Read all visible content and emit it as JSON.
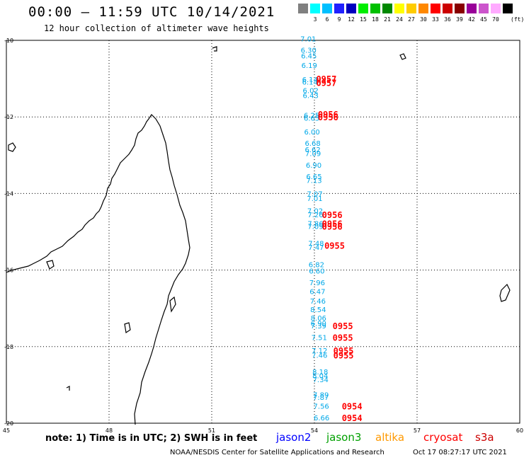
{
  "header": {
    "title": "00:00 – 11:59 UTC 10/14/2021",
    "subtitle": "12 hour collection of altimeter wave heights"
  },
  "color_scale": {
    "unit": "(ft)",
    "swatches": [
      {
        "color": "#808080",
        "label": ""
      },
      {
        "color": "#00ffff",
        "label": "3"
      },
      {
        "color": "#00c0ff",
        "label": "6"
      },
      {
        "color": "#2020ff",
        "label": "9"
      },
      {
        "color": "#0000c0",
        "label": "12"
      },
      {
        "color": "#00ee00",
        "label": "15"
      },
      {
        "color": "#00c000",
        "label": "18"
      },
      {
        "color": "#008800",
        "label": "21"
      },
      {
        "color": "#ffff00",
        "label": "24"
      },
      {
        "color": "#ffcc00",
        "label": "27"
      },
      {
        "color": "#ff8800",
        "label": "30"
      },
      {
        "color": "#ff0000",
        "label": "33"
      },
      {
        "color": "#cc0000",
        "label": "36"
      },
      {
        "color": "#880000",
        "label": "39"
      },
      {
        "color": "#990099",
        "label": "42"
      },
      {
        "color": "#cc55cc",
        "label": "45"
      },
      {
        "color": "#ffaaff",
        "label": "70"
      },
      {
        "color": "#000000",
        "label": ""
      }
    ]
  },
  "axes": {
    "lon_ticks": [
      {
        "lon": 45,
        "label": "45"
      },
      {
        "lon": 48,
        "label": "48"
      },
      {
        "lon": 51,
        "label": "51"
      },
      {
        "lon": 54,
        "label": "54"
      },
      {
        "lon": 57,
        "label": "57"
      },
      {
        "lon": 60,
        "label": "60"
      }
    ],
    "lat_ticks": [
      {
        "lat": -10,
        "label": "-10"
      },
      {
        "lat": -12,
        "label": "-12"
      },
      {
        "lat": -14,
        "label": "-14"
      },
      {
        "lat": -16,
        "label": "-16"
      },
      {
        "lat": -18,
        "label": "-18"
      },
      {
        "lat": -20,
        "label": "-20"
      }
    ]
  },
  "swh_observations": [
    {
      "lon": 53.82,
      "lat": -9.95,
      "value": "7.01"
    },
    {
      "lon": 53.83,
      "lat": -10.25,
      "value": "6.30"
    },
    {
      "lon": 53.84,
      "lat": -10.4,
      "value": "6.45"
    },
    {
      "lon": 53.85,
      "lat": -10.65,
      "value": "6.19"
    },
    {
      "lon": 53.87,
      "lat": -11.02,
      "value": "6.14"
    },
    {
      "lon": 53.87,
      "lat": -11.08,
      "value": "6.14"
    },
    {
      "lon": 53.89,
      "lat": -11.3,
      "value": "6.02"
    },
    {
      "lon": 53.89,
      "lat": -11.43,
      "value": "6.43"
    },
    {
      "lon": 53.92,
      "lat": -11.95,
      "value": "6.25"
    },
    {
      "lon": 53.92,
      "lat": -12.02,
      "value": "6.65"
    },
    {
      "lon": 53.93,
      "lat": -12.38,
      "value": "6.00"
    },
    {
      "lon": 53.95,
      "lat": -12.68,
      "value": "6.68"
    },
    {
      "lon": 53.95,
      "lat": -12.85,
      "value": "6.62"
    },
    {
      "lon": 53.96,
      "lat": -12.95,
      "value": "7.09"
    },
    {
      "lon": 53.98,
      "lat": -13.25,
      "value": "6.90"
    },
    {
      "lon": 53.99,
      "lat": -13.55,
      "value": "6.65"
    },
    {
      "lon": 53.99,
      "lat": -13.65,
      "value": "7.13"
    },
    {
      "lon": 54.01,
      "lat": -14.0,
      "value": "7.07"
    },
    {
      "lon": 54.01,
      "lat": -14.12,
      "value": "7.01"
    },
    {
      "lon": 54.02,
      "lat": -14.45,
      "value": "7.02"
    },
    {
      "lon": 54.03,
      "lat": -14.55,
      "value": "7.26"
    },
    {
      "lon": 54.03,
      "lat": -14.78,
      "value": "7.86"
    },
    {
      "lon": 54.03,
      "lat": -14.85,
      "value": "7.09"
    },
    {
      "lon": 54.05,
      "lat": -15.3,
      "value": "7.48"
    },
    {
      "lon": 54.05,
      "lat": -15.4,
      "value": "7.47"
    },
    {
      "lon": 54.06,
      "lat": -15.85,
      "value": "6.82"
    },
    {
      "lon": 54.07,
      "lat": -16.02,
      "value": "6.60"
    },
    {
      "lon": 54.08,
      "lat": -16.32,
      "value": "7.96"
    },
    {
      "lon": 54.09,
      "lat": -16.55,
      "value": "6.47"
    },
    {
      "lon": 54.1,
      "lat": -16.8,
      "value": "7.46"
    },
    {
      "lon": 54.11,
      "lat": -17.02,
      "value": "8.54"
    },
    {
      "lon": 54.12,
      "lat": -17.25,
      "value": "8.06"
    },
    {
      "lon": 54.12,
      "lat": -17.38,
      "value": "6.90"
    },
    {
      "lon": 54.12,
      "lat": -17.45,
      "value": "7.39"
    },
    {
      "lon": 54.14,
      "lat": -17.75,
      "value": "7.51"
    },
    {
      "lon": 54.15,
      "lat": -18.1,
      "value": "7.12"
    },
    {
      "lon": 54.15,
      "lat": -18.22,
      "value": "7.46"
    },
    {
      "lon": 54.17,
      "lat": -18.65,
      "value": "8.18"
    },
    {
      "lon": 54.17,
      "lat": -18.75,
      "value": "8.04"
    },
    {
      "lon": 54.18,
      "lat": -18.85,
      "value": "7.34"
    },
    {
      "lon": 54.19,
      "lat": -19.25,
      "value": "7.89"
    },
    {
      "lon": 54.19,
      "lat": -19.32,
      "value": "7.87"
    },
    {
      "lon": 54.2,
      "lat": -19.55,
      "value": "7.56"
    },
    {
      "lon": 54.21,
      "lat": -19.85,
      "value": "6.66"
    }
  ],
  "pass_times": [
    {
      "lon": 54.35,
      "lat": -11.0,
      "label": "0957"
    },
    {
      "lon": 54.35,
      "lat": -11.1,
      "label": "0957"
    },
    {
      "lon": 54.4,
      "lat": -11.92,
      "label": "0956"
    },
    {
      "lon": 54.4,
      "lat": -12.0,
      "label": "0956"
    },
    {
      "lon": 54.52,
      "lat": -14.55,
      "label": "0956"
    },
    {
      "lon": 54.52,
      "lat": -14.78,
      "label": "0956"
    },
    {
      "lon": 54.52,
      "lat": -14.85,
      "label": "0956"
    },
    {
      "lon": 54.59,
      "lat": -15.35,
      "label": "0955"
    },
    {
      "lon": 54.83,
      "lat": -17.45,
      "label": "0955"
    },
    {
      "lon": 54.83,
      "lat": -17.75,
      "label": "0955"
    },
    {
      "lon": 54.85,
      "lat": -18.1,
      "label": "0955"
    },
    {
      "lon": 54.85,
      "lat": -18.22,
      "label": "0955"
    },
    {
      "lon": 55.1,
      "lat": -19.55,
      "label": "0954"
    },
    {
      "lon": 55.1,
      "lat": -19.85,
      "label": "0954"
    }
  ],
  "footer": {
    "note": "note: 1) Time is in UTC; 2) SWH is in feet",
    "credit": "NOAA/NESDIS Center for Satellite Applications and Research",
    "timestamp": "Oct 17 08:27:17 UTC 2021"
  },
  "legend": [
    {
      "name": "jason2",
      "color": "#0000ff"
    },
    {
      "name": "jason3",
      "color": "#00a000"
    },
    {
      "name": "altika",
      "color": "#ff9900"
    },
    {
      "name": "cryosat",
      "color": "#ff0000"
    },
    {
      "name": "s3a",
      "color": "#cc0000"
    }
  ],
  "colors": {
    "swh_text": "#00a8e8",
    "time_text": "#ff0000",
    "coast": "#000000",
    "grid": "#000000"
  }
}
